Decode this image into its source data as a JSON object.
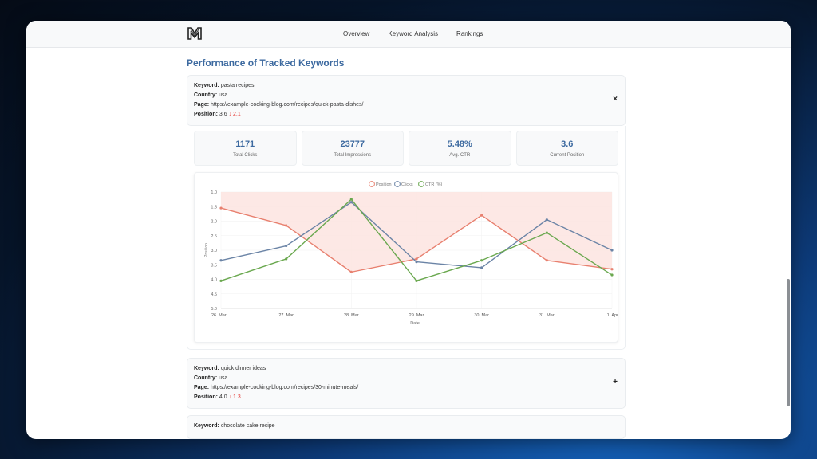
{
  "nav": {
    "logo_icon": "m-logo-icon",
    "links": [
      "Overview",
      "Keyword Analysis",
      "Rankings"
    ]
  },
  "section_title": "Performance of Tracked Keywords",
  "labels": {
    "keyword": "Keyword:",
    "country": "Country:",
    "page": "Page:",
    "position": "Position:"
  },
  "keywords": [
    {
      "keyword": "pasta recipes",
      "country": "usa",
      "page": "https://example-cooking-blog.com/recipes/quick-pasta-dishes/",
      "position": "3.6",
      "position_change": "↓ 2.1",
      "toggle": "×"
    },
    {
      "keyword": "quick dinner ideas",
      "country": "usa",
      "page": "https://example-cooking-blog.com/recipes/30-minute-meals/",
      "position": "4.0",
      "position_change": "↓ 1.3",
      "toggle": "+"
    },
    {
      "keyword": "chocolate cake recipe"
    }
  ],
  "stats": [
    {
      "value": "1171",
      "label": "Total Clicks"
    },
    {
      "value": "23777",
      "label": "Total Impressions"
    },
    {
      "value": "5.48%",
      "label": "Avg. CTR"
    },
    {
      "value": "3.6",
      "label": "Current Position"
    }
  ],
  "colors": {
    "position": "#e8806f",
    "clicks": "#6b84a6",
    "ctr": "#6aa84f",
    "position_fill": "#fde4e1",
    "accent": "#3d6aa0"
  },
  "chart_data": {
    "type": "line",
    "x": [
      "26. Mar",
      "27. Mar",
      "28. Mar",
      "29. Mar",
      "30. Mar",
      "31. Mar",
      "1. Apr"
    ],
    "xlabel": "Date",
    "ylabel": "Position",
    "ylim": [
      5.0,
      1.0
    ],
    "yticks": [
      "1.0",
      "1.5",
      "2.0",
      "2.5",
      "3.0",
      "3.5",
      "4.0",
      "4.5",
      "5.0"
    ],
    "legend": "top",
    "series": [
      {
        "name": "Position",
        "values": [
          1.55,
          2.15,
          3.75,
          3.3,
          1.8,
          3.35,
          3.65
        ],
        "fill": true
      },
      {
        "name": "Clicks",
        "values": [
          3.35,
          2.85,
          1.35,
          3.4,
          3.6,
          1.95,
          3.0
        ]
      },
      {
        "name": "CTR (%)",
        "values": [
          4.05,
          3.3,
          1.25,
          4.05,
          3.35,
          2.4,
          3.85
        ]
      }
    ]
  }
}
